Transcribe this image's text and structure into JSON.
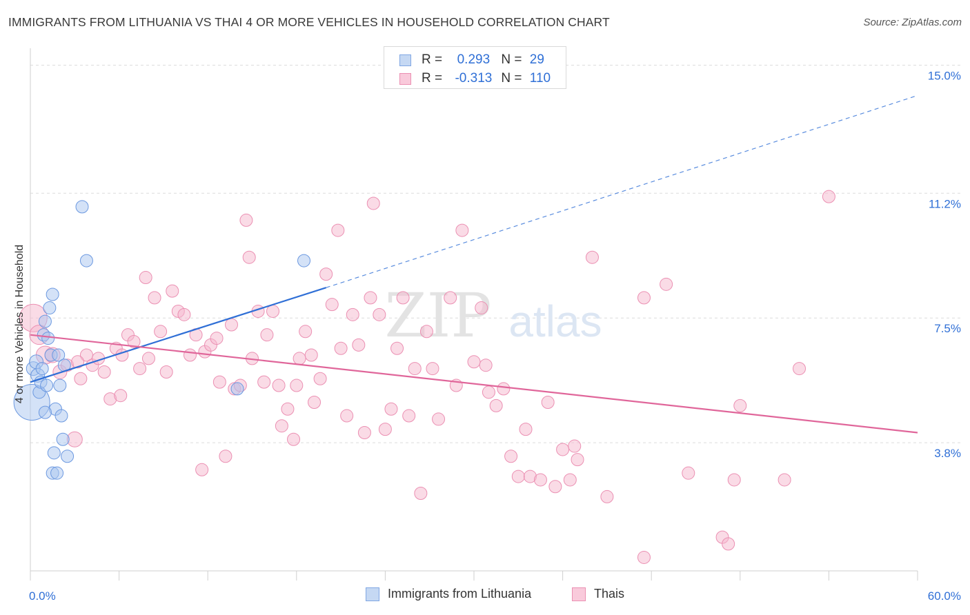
{
  "title": "IMMIGRANTS FROM LITHUANIA VS THAI 4 OR MORE VEHICLES IN HOUSEHOLD CORRELATION CHART",
  "source": "Source: ZipAtlas.com",
  "watermark": {
    "zip": "ZIP",
    "atlas": "atlas"
  },
  "colors": {
    "blue": "#2f6fd6",
    "blue_fill": "#a9c6f0",
    "pink": "#e0669a",
    "pink_fill": "#f5b8cd",
    "grid": "#dcdcdc"
  },
  "legend_top": {
    "rows": [
      {
        "r_label": "R =",
        "r_value": "0.293",
        "n_label": "N =",
        "n_value": "29"
      },
      {
        "r_label": "R =",
        "r_value": "-0.313",
        "n_label": "N =",
        "n_value": "110"
      }
    ]
  },
  "chart_data": {
    "type": "scatter",
    "xlabel": "",
    "ylabel": "4 or more Vehicles in Household",
    "xlim": [
      0,
      60
    ],
    "ylim": [
      0,
      15.5
    ],
    "x_tick_labels": {
      "left": "0.0%",
      "right": "60.0%"
    },
    "y_ticks": [
      3.8,
      7.5,
      11.2,
      15.0
    ],
    "y_tick_labels": [
      "3.8%",
      "7.5%",
      "11.2%",
      "15.0%"
    ],
    "grid": true,
    "legend_position": "bottom",
    "series": [
      {
        "name": "Immigrants from Lithuania",
        "color": "blue",
        "trendline": {
          "x0": 0,
          "y0": 5.6,
          "x1": 20,
          "y1": 8.4,
          "dashed_to_x": 60,
          "dashed_to_y": 14.1
        },
        "points": [
          [
            0.1,
            5.0,
            26
          ],
          [
            0.2,
            6.0,
            10
          ],
          [
            0.4,
            6.2,
            10
          ],
          [
            0.5,
            5.8,
            10
          ],
          [
            0.6,
            5.3,
            9
          ],
          [
            0.7,
            5.6,
            9
          ],
          [
            0.8,
            6.0,
            9
          ],
          [
            0.9,
            7.0,
            9
          ],
          [
            1.0,
            7.4,
            9
          ],
          [
            1.1,
            5.5,
            9
          ],
          [
            1.2,
            6.9,
            9
          ],
          [
            1.3,
            7.8,
            9
          ],
          [
            1.4,
            6.4,
            9
          ],
          [
            1.5,
            8.2,
            9
          ],
          [
            1.5,
            2.9,
            9
          ],
          [
            1.6,
            3.5,
            9
          ],
          [
            1.7,
            4.8,
            9
          ],
          [
            1.8,
            2.9,
            9
          ],
          [
            1.9,
            6.4,
            9
          ],
          [
            2.0,
            5.5,
            9
          ],
          [
            2.1,
            4.6,
            9
          ],
          [
            2.2,
            3.9,
            9
          ],
          [
            2.5,
            3.4,
            9
          ],
          [
            2.3,
            6.1,
            9
          ],
          [
            3.5,
            10.8,
            9
          ],
          [
            3.8,
            9.2,
            9
          ],
          [
            14.0,
            5.4,
            9
          ],
          [
            18.5,
            9.2,
            9
          ],
          [
            1.0,
            4.7,
            9
          ]
        ]
      },
      {
        "name": "Thais",
        "color": "pink",
        "trendline": {
          "x0": 0,
          "y0": 7.0,
          "x1": 60,
          "y1": 4.1
        },
        "points": [
          [
            0.2,
            7.5,
            20
          ],
          [
            0.6,
            7.0,
            14
          ],
          [
            1.0,
            6.4,
            13
          ],
          [
            1.5,
            6.4,
            11
          ],
          [
            2.0,
            5.9,
            10
          ],
          [
            2.5,
            6.1,
            9
          ],
          [
            3.0,
            3.9,
            11
          ],
          [
            3.4,
            5.7,
            9
          ],
          [
            3.8,
            6.4,
            9
          ],
          [
            4.2,
            6.1,
            9
          ],
          [
            4.6,
            6.3,
            9
          ],
          [
            5.0,
            5.9,
            9
          ],
          [
            5.4,
            5.1,
            9
          ],
          [
            5.8,
            6.6,
            9
          ],
          [
            6.2,
            6.4,
            9
          ],
          [
            6.6,
            7.0,
            9
          ],
          [
            7.0,
            6.8,
            9
          ],
          [
            7.4,
            6.0,
            9
          ],
          [
            7.8,
            8.7,
            9
          ],
          [
            8.0,
            6.3,
            9
          ],
          [
            8.4,
            8.1,
            9
          ],
          [
            8.8,
            7.1,
            9
          ],
          [
            9.2,
            5.9,
            9
          ],
          [
            9.6,
            8.3,
            9
          ],
          [
            10.0,
            7.7,
            9
          ],
          [
            10.4,
            7.6,
            9
          ],
          [
            10.8,
            6.4,
            9
          ],
          [
            11.2,
            7.0,
            9
          ],
          [
            11.6,
            3.0,
            9
          ],
          [
            11.8,
            6.5,
            9
          ],
          [
            12.2,
            6.7,
            9
          ],
          [
            12.6,
            6.9,
            9
          ],
          [
            12.8,
            5.6,
            9
          ],
          [
            13.2,
            3.4,
            9
          ],
          [
            13.6,
            7.3,
            9
          ],
          [
            13.8,
            5.4,
            9
          ],
          [
            14.2,
            5.5,
            9
          ],
          [
            14.6,
            10.4,
            9
          ],
          [
            14.8,
            9.3,
            9
          ],
          [
            15.0,
            6.3,
            9
          ],
          [
            15.4,
            7.7,
            9
          ],
          [
            15.8,
            5.6,
            9
          ],
          [
            16.0,
            7.0,
            9
          ],
          [
            16.4,
            7.7,
            9
          ],
          [
            16.8,
            5.5,
            9
          ],
          [
            17.0,
            4.3,
            9
          ],
          [
            17.4,
            4.8,
            9
          ],
          [
            17.8,
            3.9,
            9
          ],
          [
            18.0,
            5.5,
            9
          ],
          [
            18.2,
            6.3,
            9
          ],
          [
            18.6,
            7.1,
            9
          ],
          [
            19.0,
            6.4,
            9
          ],
          [
            19.2,
            5.0,
            9
          ],
          [
            19.6,
            5.7,
            9
          ],
          [
            20.0,
            8.8,
            9
          ],
          [
            20.4,
            7.9,
            9
          ],
          [
            20.8,
            10.1,
            9
          ],
          [
            21.0,
            6.6,
            9
          ],
          [
            21.4,
            4.6,
            9
          ],
          [
            21.8,
            7.6,
            9
          ],
          [
            22.2,
            6.7,
            9
          ],
          [
            22.6,
            4.1,
            9
          ],
          [
            23.0,
            8.1,
            9
          ],
          [
            23.2,
            10.9,
            9
          ],
          [
            23.6,
            7.6,
            9
          ],
          [
            24.0,
            4.2,
            9
          ],
          [
            24.4,
            4.8,
            9
          ],
          [
            24.8,
            6.6,
            9
          ],
          [
            25.2,
            8.1,
            9
          ],
          [
            25.6,
            4.6,
            9
          ],
          [
            26.0,
            6.0,
            9
          ],
          [
            26.4,
            2.3,
            9
          ],
          [
            26.8,
            7.1,
            9
          ],
          [
            27.2,
            6.0,
            9
          ],
          [
            27.6,
            4.5,
            9
          ],
          [
            28.4,
            8.1,
            9
          ],
          [
            28.8,
            5.5,
            9
          ],
          [
            29.2,
            10.1,
            9
          ],
          [
            30.0,
            6.2,
            9
          ],
          [
            30.5,
            7.8,
            9
          ],
          [
            30.8,
            6.1,
            9
          ],
          [
            31.0,
            5.3,
            9
          ],
          [
            31.5,
            4.9,
            9
          ],
          [
            32.0,
            5.4,
            9
          ],
          [
            32.5,
            3.4,
            9
          ],
          [
            33.0,
            2.8,
            9
          ],
          [
            33.5,
            4.2,
            9
          ],
          [
            33.8,
            2.8,
            9
          ],
          [
            34.5,
            2.7,
            9
          ],
          [
            35.0,
            5.0,
            9
          ],
          [
            36.0,
            3.6,
            9
          ],
          [
            36.5,
            2.7,
            9
          ],
          [
            36.8,
            3.7,
            9
          ],
          [
            37.0,
            3.3,
            9
          ],
          [
            38.0,
            9.3,
            9
          ],
          [
            39.0,
            2.2,
            9
          ],
          [
            41.5,
            8.1,
            9
          ],
          [
            43.0,
            8.5,
            9
          ],
          [
            44.5,
            2.9,
            9
          ],
          [
            46.8,
            1.0,
            9
          ],
          [
            47.2,
            0.8,
            9
          ],
          [
            47.6,
            2.7,
            9
          ],
          [
            48.0,
            4.9,
            9
          ],
          [
            51.0,
            2.7,
            9
          ],
          [
            52.0,
            6.0,
            9
          ],
          [
            54.0,
            11.1,
            9
          ],
          [
            41.5,
            0.4,
            9
          ],
          [
            35.5,
            2.5,
            9
          ],
          [
            3.2,
            6.2,
            9
          ],
          [
            6.1,
            5.2,
            9
          ]
        ]
      }
    ]
  },
  "legend_bottom": [
    {
      "label": "Immigrants from Lithuania"
    },
    {
      "label": "Thais"
    }
  ]
}
